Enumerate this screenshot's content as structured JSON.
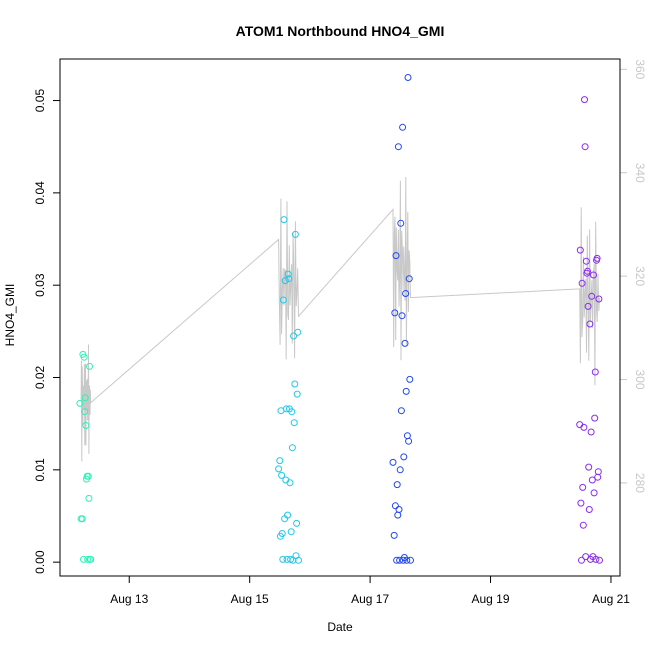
{
  "chart_data": {
    "type": "scatter",
    "title": "ATOM1 Northbound HNO4_GMI",
    "xlabel": "Date",
    "ylabel": "HNO4_GMI",
    "x_ticks": [
      "Aug 13",
      "Aug 15",
      "Aug 17",
      "Aug 19",
      "Aug 21"
    ],
    "x_tick_days": [
      13,
      15,
      17,
      19,
      21
    ],
    "xlim_days": [
      11.85,
      21.15
    ],
    "ylim": [
      -0.0015,
      0.0545
    ],
    "y_ticks": [
      "0.00",
      "0.01",
      "0.02",
      "0.03",
      "0.04",
      "0.05"
    ],
    "y_tick_values": [
      0.0,
      0.01,
      0.02,
      0.03,
      0.04,
      0.05
    ],
    "y2lim": [
      262,
      362
    ],
    "y2_ticks": [
      "280",
      "300",
      "320",
      "340",
      "360"
    ],
    "y2_tick_values": [
      280,
      300,
      320,
      340,
      360
    ],
    "colors": {
      "flight1": "#2ef0b6",
      "flight2": "#22c8e8",
      "flight3": "#2248f0",
      "flight4": "#8a2cf0",
      "secondary_line": "#c8c8c8",
      "axis": "#000000"
    },
    "series": [
      {
        "points": [
          [
            12.18,
            0.0172
          ],
          [
            12.2,
            0.0047
          ],
          [
            12.22,
            0.0047
          ],
          [
            12.23,
            0.0225
          ],
          [
            12.24,
            0.0003
          ],
          [
            12.25,
            0.0222
          ],
          [
            12.26,
            0.0163
          ],
          [
            12.27,
            0.0178
          ],
          [
            12.28,
            0.0148
          ],
          [
            12.29,
            0.009
          ],
          [
            12.3,
            0.0093
          ],
          [
            12.31,
            0.0003
          ],
          [
            12.32,
            0.0093
          ],
          [
            12.33,
            0.0069
          ],
          [
            12.34,
            0.0212
          ],
          [
            12.35,
            0.0003
          ],
          [
            12.36,
            0.0003
          ]
        ]
      },
      {
        "points": [
          [
            15.48,
            0.0101
          ],
          [
            15.5,
            0.011
          ],
          [
            15.51,
            0.0028
          ],
          [
            15.52,
            0.0164
          ],
          [
            15.53,
            0.0094
          ],
          [
            15.54,
            0.0031
          ],
          [
            15.55,
            0.0003
          ],
          [
            15.56,
            0.0284
          ],
          [
            15.57,
            0.0371
          ],
          [
            15.58,
            0.0047
          ],
          [
            15.59,
            0.0305
          ],
          [
            15.6,
            0.0089
          ],
          [
            15.61,
            0.0166
          ],
          [
            15.62,
            0.0003
          ],
          [
            15.63,
            0.0051
          ],
          [
            15.64,
            0.0312
          ],
          [
            15.65,
            0.0307
          ],
          [
            15.66,
            0.0166
          ],
          [
            15.67,
            0.0086
          ],
          [
            15.68,
            0.0003
          ],
          [
            15.69,
            0.0033
          ],
          [
            15.7,
            0.0163
          ],
          [
            15.71,
            0.0124
          ],
          [
            15.72,
            0.0002
          ],
          [
            15.73,
            0.0245
          ],
          [
            15.74,
            0.0151
          ],
          [
            15.75,
            0.0193
          ],
          [
            15.76,
            0.0355
          ],
          [
            15.77,
            0.0007
          ],
          [
            15.78,
            0.0042
          ],
          [
            15.79,
            0.0182
          ],
          [
            15.8,
            0.0249
          ],
          [
            15.81,
            0.0002
          ]
        ]
      },
      {
        "points": [
          [
            17.38,
            0.0108
          ],
          [
            17.4,
            0.0029
          ],
          [
            17.41,
            0.027
          ],
          [
            17.42,
            0.0061
          ],
          [
            17.43,
            0.0332
          ],
          [
            17.44,
            0.0002
          ],
          [
            17.45,
            0.0084
          ],
          [
            17.46,
            0.0051
          ],
          [
            17.47,
            0.045
          ],
          [
            17.48,
            0.0057
          ],
          [
            17.49,
            0.0002
          ],
          [
            17.5,
            0.01
          ],
          [
            17.51,
            0.0367
          ],
          [
            17.52,
            0.0164
          ],
          [
            17.53,
            0.0267
          ],
          [
            17.54,
            0.0471
          ],
          [
            17.55,
            0.0002
          ],
          [
            17.56,
            0.0114
          ],
          [
            17.57,
            0.0005
          ],
          [
            17.58,
            0.0237
          ],
          [
            17.59,
            0.0291
          ],
          [
            17.6,
            0.0185
          ],
          [
            17.61,
            0.0002
          ],
          [
            17.62,
            0.0137
          ],
          [
            17.63,
            0.0525
          ],
          [
            17.64,
            0.0131
          ],
          [
            17.65,
            0.0307
          ],
          [
            17.66,
            0.0198
          ],
          [
            17.67,
            0.0002
          ]
        ]
      },
      {
        "points": [
          [
            20.48,
            0.0149
          ],
          [
            20.49,
            0.0338
          ],
          [
            20.5,
            0.0064
          ],
          [
            20.51,
            0.0002
          ],
          [
            20.52,
            0.0302
          ],
          [
            20.53,
            0.0081
          ],
          [
            20.54,
            0.004
          ],
          [
            20.55,
            0.0146
          ],
          [
            20.56,
            0.0501
          ],
          [
            20.57,
            0.045
          ],
          [
            20.58,
            0.0006
          ],
          [
            20.59,
            0.0326
          ],
          [
            20.6,
            0.0313
          ],
          [
            20.61,
            0.0315
          ],
          [
            20.62,
            0.0277
          ],
          [
            20.63,
            0.0103
          ],
          [
            20.64,
            0.0057
          ],
          [
            20.65,
            0.0258
          ],
          [
            20.66,
            0.0003
          ],
          [
            20.67,
            0.0141
          ],
          [
            20.68,
            0.0288
          ],
          [
            20.69,
            0.0089
          ],
          [
            20.7,
            0.0006
          ],
          [
            20.71,
            0.0311
          ],
          [
            20.72,
            0.0075
          ],
          [
            20.73,
            0.0156
          ],
          [
            20.74,
            0.0206
          ],
          [
            20.75,
            0.0003
          ],
          [
            20.76,
            0.0327
          ],
          [
            20.77,
            0.0329
          ],
          [
            20.78,
            0.0092
          ],
          [
            20.79,
            0.0098
          ],
          [
            20.8,
            0.0285
          ],
          [
            20.81,
            0.0002
          ]
        ]
      }
    ]
  }
}
